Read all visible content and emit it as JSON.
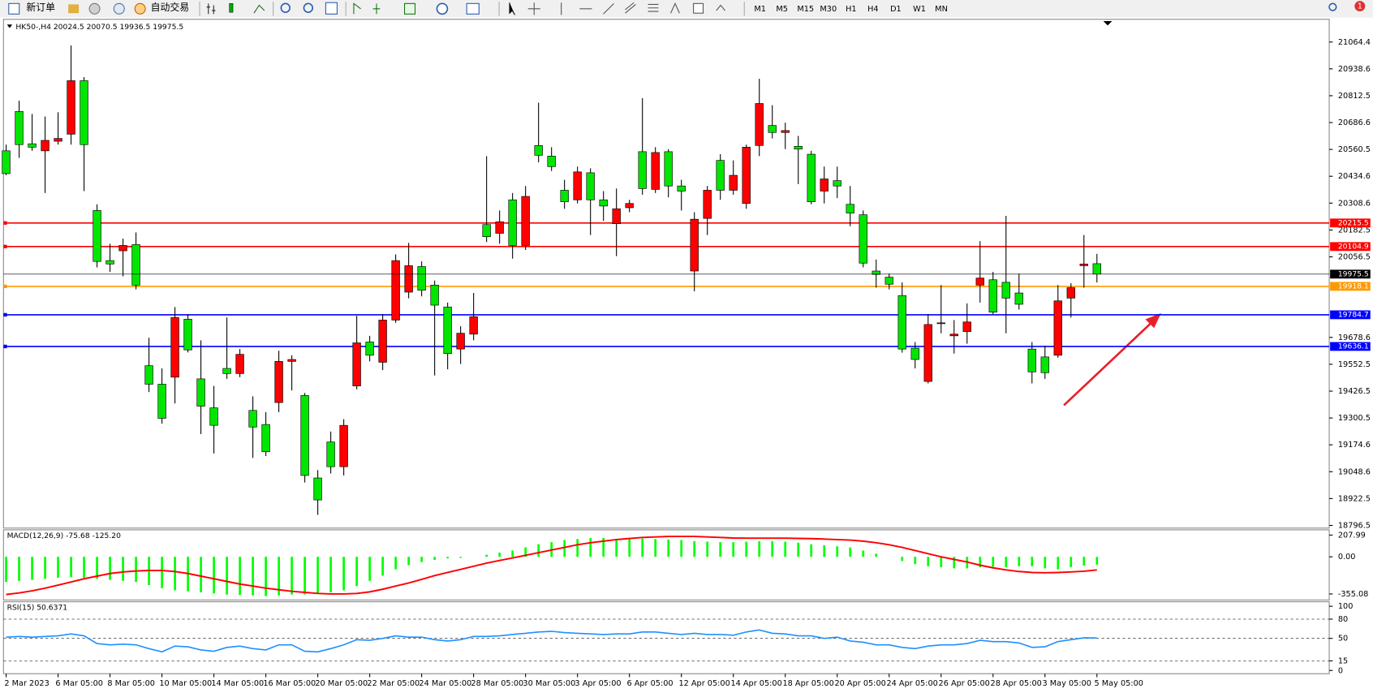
{
  "toolbar": {
    "buttons": [
      "新订单",
      "自动交易"
    ],
    "timeframes": [
      "M1",
      "M5",
      "M15",
      "M30",
      "H1",
      "H4",
      "D1",
      "W1",
      "MN"
    ],
    "badge": "1"
  },
  "chart_data": [
    {
      "type": "candlestick",
      "title": "HK50-,H4  20024.5 20070.5 19936.5 19975.5",
      "categories": [
        "2 Mar 2023",
        null,
        null,
        null,
        "6 Mar 05:00",
        null,
        null,
        null,
        "8 Mar 05:00",
        null,
        null,
        null,
        "10 Mar 05:00",
        null,
        null,
        null,
        "14 Mar 05:00",
        null,
        null,
        null,
        "16 Mar 05:00",
        null,
        null,
        null,
        "20 Mar 05:00",
        null,
        null,
        null,
        "22 Mar 05:00",
        null,
        null,
        null,
        "24 Mar 05:00",
        null,
        null,
        null,
        "28 Mar 05:00",
        null,
        null,
        null,
        "30 Mar 05:00",
        null,
        null,
        null,
        "3 Apr 05:00",
        null,
        null,
        null,
        "6 Apr 05:00",
        null,
        null,
        null,
        "12 Apr 05:00",
        null,
        null,
        null,
        "14 Apr 05:00",
        null,
        null,
        null,
        "18 Apr 05:00",
        null,
        null,
        null,
        "20 Apr 05:00",
        null,
        null,
        null,
        "24 Apr 05:00",
        null,
        null,
        null,
        "26 Apr 05:00",
        null,
        null,
        null,
        "28 Apr 05:00",
        null,
        null,
        null,
        "3 May 05:00",
        null,
        null,
        null,
        "5 May 05:00"
      ],
      "open": [
        20554,
        20739,
        20587,
        20554,
        20599,
        20632,
        20883,
        20274,
        20039,
        20085,
        20114,
        19546,
        19459,
        19492,
        19764,
        19484,
        19348,
        19533,
        19509,
        19336,
        19270,
        19373,
        19566,
        19406,
        19019,
        19188,
        19072,
        19451,
        19657,
        19562,
        19760,
        19891,
        20011,
        19924,
        19821,
        19624,
        19694,
        20208,
        20167,
        20324,
        20110,
        20579,
        20529,
        20369,
        20324,
        20451,
        20324,
        20212,
        20287,
        20550,
        20373,
        20550,
        20389,
        19990,
        20237,
        20509,
        20369,
        20307,
        20579,
        20673,
        20640,
        20575,
        20538,
        20365,
        20414,
        20303,
        20254,
        19990,
        19961,
        19875,
        19628,
        19472,
        19743,
        19686,
        19706,
        19924,
        19949,
        19937,
        19887,
        19624,
        19587,
        19595,
        19863,
        20015,
        20024.5
      ],
      "high": [
        20583,
        20789,
        20727,
        20715,
        20735,
        21048,
        20900,
        20303,
        20118,
        20142,
        20171,
        19677,
        19533,
        19821,
        19788,
        19665,
        19451,
        19772,
        19624,
        19402,
        19328,
        19616,
        19595,
        19418,
        19056,
        19237,
        19295,
        19780,
        19686,
        19788,
        20068,
        20122,
        20035,
        19945,
        19842,
        19731,
        19887,
        20529,
        20274,
        20356,
        20389,
        20780,
        20571,
        20418,
        20480,
        20472,
        20365,
        20377,
        20324,
        20801,
        20571,
        20562,
        20418,
        20266,
        20389,
        20538,
        20509,
        20583,
        20892,
        20768,
        20686,
        20624,
        20554,
        20480,
        20480,
        20389,
        20274,
        20044,
        19978,
        19937,
        19657,
        19788,
        19924,
        19760,
        19838,
        20130,
        19986,
        20249,
        19978,
        19657,
        19640,
        19924,
        19933,
        20159,
        20070.5
      ],
      "low": [
        20439,
        20521,
        20554,
        20356,
        20583,
        20583,
        20365,
        20007,
        19986,
        19965,
        19904,
        19422,
        19274,
        19369,
        19608,
        19225,
        19134,
        19484,
        19492,
        19113,
        19122,
        19328,
        19430,
        18998,
        18846,
        19040,
        19031,
        19435,
        19566,
        19525,
        19747,
        19862,
        19871,
        19500,
        19529,
        19554,
        19665,
        20126,
        20118,
        20048,
        20089,
        20500,
        20459,
        20282,
        20307,
        20159,
        20225,
        20060,
        20266,
        20348,
        20356,
        20336,
        20274,
        19895,
        20159,
        20324,
        20348,
        20282,
        20529,
        20612,
        20562,
        20398,
        20303,
        20307,
        20332,
        20200,
        20007,
        19912,
        19904,
        19607,
        19533,
        19463,
        19698,
        19603,
        19649,
        19842,
        19788,
        19698,
        19809,
        19463,
        19484,
        19583,
        19772,
        19912,
        19936.5
      ],
      "close": [
        20447,
        20583,
        20571,
        20603,
        20612,
        20883,
        20583,
        20035,
        20023,
        20110,
        19924,
        19459,
        19299,
        19772,
        19620,
        19356,
        19266,
        19509,
        19599,
        19258,
        19142,
        19566,
        19575,
        19031,
        18916,
        19072,
        19266,
        19653,
        19595,
        19760,
        20039,
        20015,
        19900,
        19830,
        19603,
        19698,
        19776,
        20151,
        20221,
        20110,
        20340,
        20533,
        20480,
        20315,
        20455,
        20324,
        20295,
        20282,
        20307,
        20377,
        20546,
        20389,
        20365,
        20233,
        20369,
        20369,
        20439,
        20571,
        20776,
        20640,
        20649,
        20562,
        20315,
        20422,
        20389,
        20262,
        20027,
        19974,
        19928,
        19624,
        19575,
        19739,
        19747,
        19694,
        19751,
        19957,
        19797,
        19863,
        19834,
        19517,
        19513,
        19850,
        19912,
        20023,
        19975.5
      ],
      "up_color": "#ff0000",
      "down_color": "#00e600",
      "ylim": [
        18784,
        21171
      ],
      "yticks": [
        21064.4,
        20938.6,
        20812.5,
        20686.6,
        20560.5,
        20434.6,
        20308.6,
        20182.5,
        20056.5,
        19678.6,
        19552.5,
        19426.5,
        19300.5,
        19174.6,
        19048.6,
        18922.5,
        18796.5
      ],
      "levels": [
        {
          "value": 20215.5,
          "color": "#ff0000"
        },
        {
          "value": 20104.9,
          "color": "#ff0000"
        },
        {
          "value": 19918.1,
          "color": "#ff9900"
        },
        {
          "value": 19784.7,
          "color": "#0000ff"
        },
        {
          "value": 19636.1,
          "color": "#0000ff"
        }
      ]
    },
    {
      "type": "macd",
      "title": "MACD(12,26,9) -75.68 -125.20",
      "values": [
        -240,
        -230,
        -220,
        -210,
        -200,
        -195,
        -200,
        -210,
        -220,
        -230,
        -240,
        -270,
        -300,
        -320,
        -330,
        -340,
        -350,
        -360,
        -365,
        -370,
        -375,
        -370,
        -360,
        -360,
        -350,
        -340,
        -320,
        -280,
        -230,
        -180,
        -120,
        -80,
        -50,
        -30,
        -15,
        -10,
        0,
        20,
        40,
        60,
        90,
        120,
        140,
        160,
        170,
        180,
        180,
        170,
        170,
        175,
        170,
        165,
        160,
        150,
        145,
        140,
        140,
        145,
        150,
        150,
        145,
        135,
        120,
        110,
        100,
        90,
        60,
        30,
        0,
        -40,
        -70,
        -90,
        -100,
        -110,
        -110,
        -100,
        -95,
        -100,
        -90,
        -90,
        -110,
        -120,
        -100,
        -85,
        -75.68
      ],
      "signal": [
        -360,
        -345,
        -325,
        -300,
        -270,
        -240,
        -210,
        -185,
        -160,
        -145,
        -135,
        -130,
        -130,
        -140,
        -160,
        -185,
        -210,
        -235,
        -260,
        -280,
        -300,
        -315,
        -330,
        -340,
        -350,
        -355,
        -355,
        -350,
        -335,
        -310,
        -280,
        -250,
        -215,
        -180,
        -150,
        -120,
        -90,
        -60,
        -35,
        -10,
        15,
        40,
        65,
        90,
        115,
        135,
        150,
        165,
        175,
        185,
        190,
        195,
        195,
        195,
        190,
        185,
        180,
        178,
        178,
        178,
        178,
        176,
        174,
        170,
        165,
        160,
        150,
        135,
        115,
        90,
        60,
        30,
        0,
        -25,
        -50,
        -80,
        -105,
        -125,
        -140,
        -150,
        -152,
        -150,
        -145,
        -138,
        -125.2
      ],
      "color": "#00ff00",
      "signal_color": "#ff0000",
      "ylim": [
        -413,
        258
      ],
      "yticks": [
        207.99,
        {
          "value": 0,
          "label": "0.00"
        },
        -355.08
      ]
    },
    {
      "type": "rsi",
      "title": "RSI(15) 50.6371",
      "values": [
        52,
        53,
        52,
        53,
        54,
        57,
        54,
        42,
        40,
        41,
        40,
        34,
        29,
        38,
        37,
        32,
        30,
        36,
        38,
        34,
        32,
        40,
        40,
        30,
        29,
        34,
        40,
        48,
        47,
        50,
        54,
        52,
        52,
        48,
        46,
        48,
        53,
        53,
        54,
        56,
        58,
        60,
        61,
        59,
        58,
        57,
        56,
        57,
        57,
        60,
        60,
        58,
        56,
        58,
        56,
        56,
        55,
        60,
        63,
        58,
        57,
        54,
        54,
        50,
        52,
        46,
        44,
        40,
        40,
        36,
        34,
        38,
        40,
        40,
        42,
        47,
        45,
        45,
        43,
        36,
        37,
        45,
        48,
        51,
        50.6371
      ],
      "color": "#1e90ff",
      "ylim": [
        -5,
        107
      ],
      "yticks": [
        100,
        80,
        50,
        15,
        0
      ],
      "levels": [
        80,
        50,
        15
      ]
    }
  ]
}
